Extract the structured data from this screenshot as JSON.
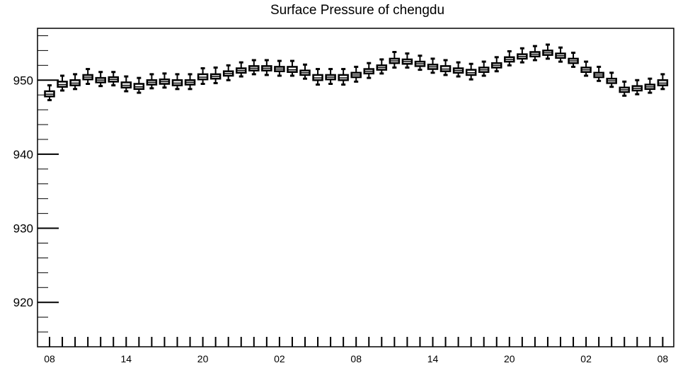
{
  "chart_data": {
    "type": "box",
    "title": "Surface Pressure of chengdu",
    "xlabel": "",
    "ylabel": "",
    "ylim": [
      914,
      957
    ],
    "yticks": [
      920,
      930,
      940,
      950
    ],
    "ytick_labels": [
      "920",
      "930",
      "940",
      "950"
    ],
    "xtick_labels": [
      "08",
      "14",
      "20",
      "02",
      "08",
      "14",
      "20",
      "02",
      "08"
    ],
    "grid": false,
    "legend": "none",
    "series": [
      {
        "median": [
          948.1,
          949.4,
          949.6,
          950.4,
          950.0,
          950.1,
          949.3,
          949.1,
          949.7,
          949.8,
          949.6,
          949.7,
          950.4,
          950.5,
          950.9,
          951.3,
          951.6,
          951.6,
          951.5,
          951.4,
          951.0,
          950.3,
          950.4,
          950.3,
          950.7,
          951.2,
          951.7,
          952.6,
          952.5,
          952.2,
          951.8,
          951.5,
          951.3,
          951.0,
          951.4,
          952.0,
          952.8,
          953.2,
          953.5,
          953.7,
          953.3,
          952.6,
          951.4,
          950.7,
          949.9,
          948.7,
          948.9,
          949.1,
          949.6
        ],
        "q1": [
          947.8,
          949.1,
          949.3,
          950.1,
          949.7,
          949.8,
          949.0,
          948.8,
          949.4,
          949.5,
          949.3,
          949.4,
          950.1,
          950.2,
          950.6,
          951.0,
          951.3,
          951.3,
          951.2,
          951.1,
          950.7,
          950.0,
          950.1,
          950.0,
          950.4,
          950.9,
          951.4,
          952.3,
          952.2,
          951.9,
          951.5,
          951.2,
          951.0,
          950.7,
          951.1,
          951.7,
          952.5,
          952.9,
          953.2,
          953.4,
          953.0,
          952.3,
          951.1,
          950.4,
          949.6,
          948.4,
          948.6,
          948.8,
          949.3
        ],
        "q3": [
          948.5,
          949.8,
          950.0,
          950.7,
          950.3,
          950.4,
          949.7,
          949.5,
          950.0,
          950.1,
          950.0,
          950.0,
          950.8,
          950.8,
          951.2,
          951.6,
          951.9,
          951.9,
          951.8,
          951.8,
          951.3,
          950.7,
          950.7,
          950.7,
          951.0,
          951.5,
          952.0,
          952.9,
          952.8,
          952.5,
          952.1,
          951.9,
          951.6,
          951.4,
          951.7,
          952.3,
          953.1,
          953.5,
          953.8,
          954.0,
          953.6,
          952.9,
          951.7,
          951.0,
          950.2,
          949.0,
          949.2,
          949.4,
          950.0
        ],
        "low": [
          947.3,
          948.6,
          948.8,
          949.5,
          949.2,
          949.3,
          948.5,
          948.3,
          948.9,
          949.0,
          948.8,
          948.8,
          949.5,
          949.6,
          950.0,
          950.5,
          950.8,
          950.7,
          950.6,
          950.6,
          950.2,
          949.4,
          949.5,
          949.4,
          949.8,
          950.3,
          950.9,
          951.7,
          951.7,
          951.4,
          951.0,
          950.7,
          950.5,
          950.1,
          950.6,
          951.2,
          952.0,
          952.4,
          952.7,
          952.9,
          952.5,
          951.8,
          950.6,
          949.9,
          949.1,
          947.9,
          948.1,
          948.3,
          948.8
        ],
        "high": [
          949.3,
          950.6,
          950.8,
          951.5,
          951.1,
          951.1,
          950.5,
          950.3,
          950.8,
          950.9,
          950.8,
          950.8,
          951.6,
          951.7,
          952.0,
          952.4,
          952.7,
          952.7,
          952.6,
          952.6,
          952.1,
          951.5,
          951.5,
          951.5,
          951.8,
          952.3,
          952.8,
          953.8,
          953.6,
          953.3,
          952.9,
          952.7,
          952.4,
          952.2,
          952.5,
          953.1,
          953.9,
          954.3,
          954.6,
          954.8,
          954.4,
          953.7,
          952.5,
          951.8,
          951.0,
          949.8,
          950.0,
          950.2,
          950.8
        ]
      }
    ]
  }
}
